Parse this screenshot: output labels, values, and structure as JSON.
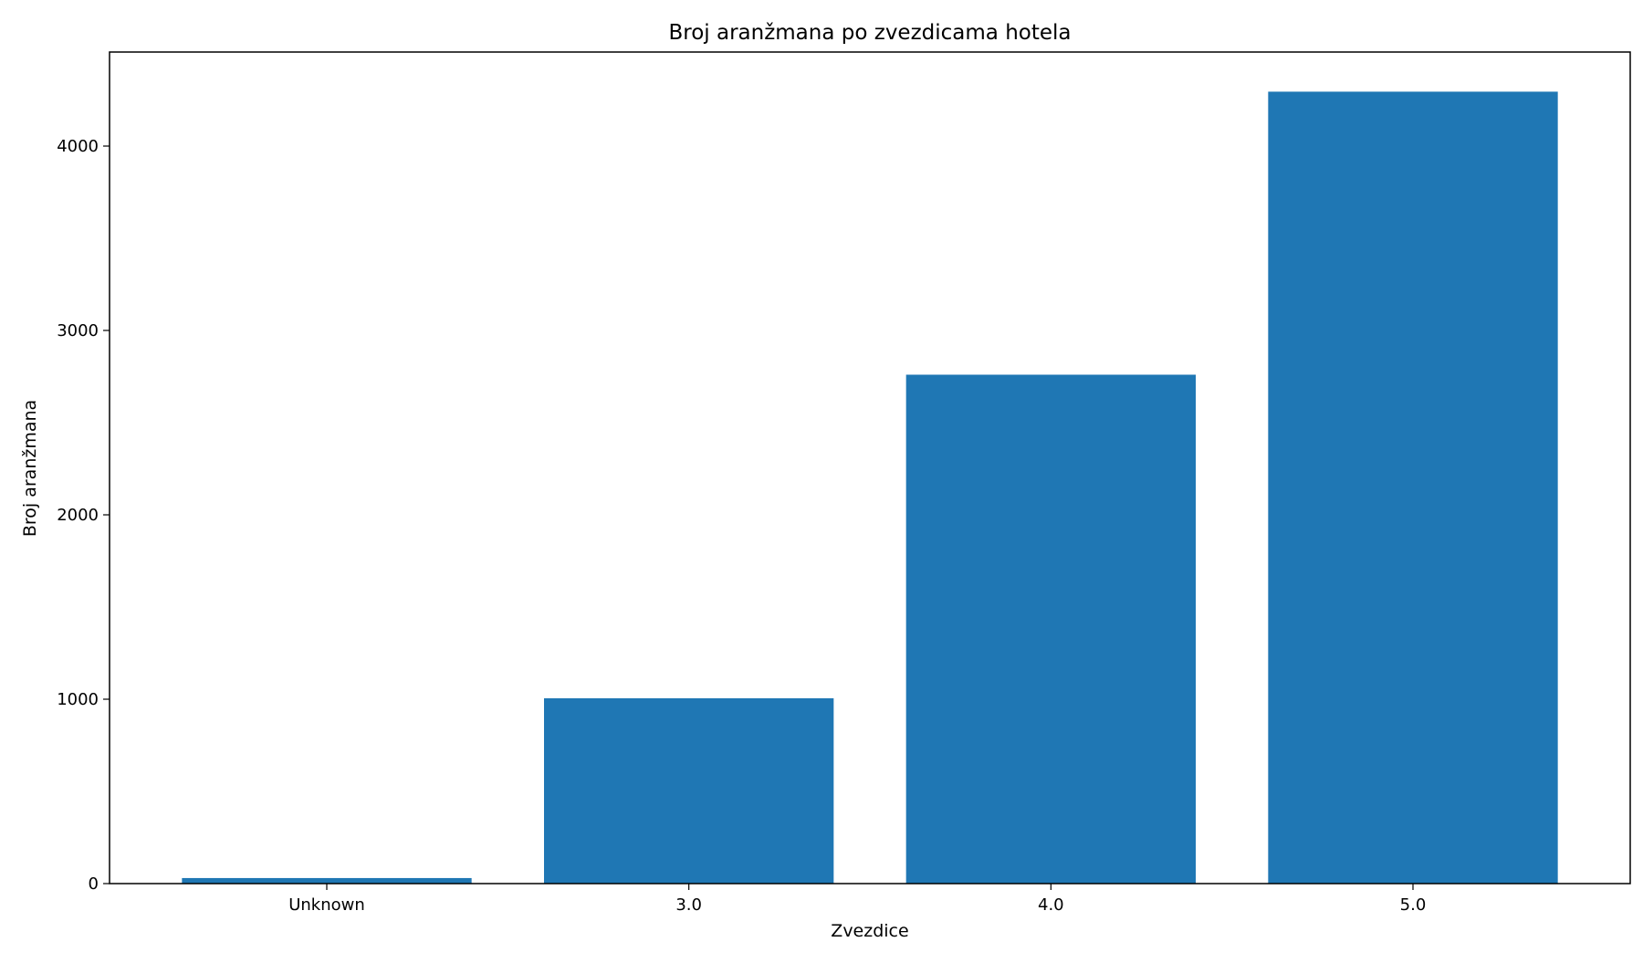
{
  "chart_data": {
    "type": "bar",
    "title": "Broj aranžmana po zvezdicama hotela",
    "xlabel": "Zvezdice",
    "ylabel": "Broj aranžmana",
    "categories": [
      "Unknown",
      "3.0",
      "4.0",
      "5.0"
    ],
    "values": [
      30,
      1005,
      2760,
      4295
    ],
    "ylim": [
      0,
      4510
    ],
    "yticks": [
      0,
      1000,
      2000,
      3000,
      4000
    ],
    "ytick_labels": [
      "0",
      "1000",
      "2000",
      "3000",
      "4000"
    ],
    "grid": false,
    "legend": "none",
    "bar_color": "#1f77b4"
  }
}
